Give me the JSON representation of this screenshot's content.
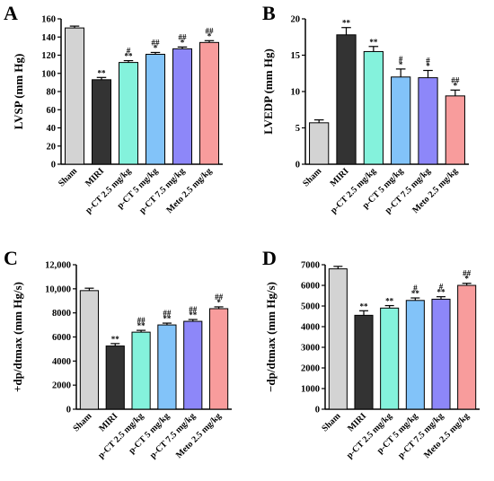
{
  "chart_data": [
    {
      "type": "bar",
      "panel": "A",
      "title": "",
      "xlabel": "",
      "ylabel": "LVSP (mm Hg)",
      "ylim": [
        0,
        160
      ],
      "yticks": [
        "0",
        "20",
        "40",
        "60",
        "80",
        "100",
        "120",
        "140",
        "160"
      ],
      "yticks_values": [
        0,
        20,
        40,
        60,
        80,
        100,
        120,
        140,
        160
      ],
      "categories": [
        "Sham",
        "MIRI",
        "p-CT 2.5 mg/kg",
        "p-CT 5 mg/kg",
        "p-CT 7.5 mg/kg",
        "Meto 2.5 mg/kg"
      ],
      "values": [
        150,
        93,
        112,
        121,
        127,
        134
      ],
      "errors": [
        2,
        2.5,
        2,
        2,
        2,
        2
      ],
      "significance": [
        {
          "upper": "",
          "lower": ""
        },
        {
          "upper": "",
          "lower": "**"
        },
        {
          "upper": "#",
          "lower": "**"
        },
        {
          "upper": "##",
          "lower": "*"
        },
        {
          "upper": "##",
          "lower": "*"
        },
        {
          "upper": "##",
          "lower": "*"
        }
      ]
    },
    {
      "type": "bar",
      "panel": "B",
      "title": "",
      "xlabel": "",
      "ylabel": "LVEDP (mm Hg)",
      "ylim": [
        0,
        20
      ],
      "yticks": [
        "0",
        "5",
        "10",
        "15",
        "20"
      ],
      "yticks_values": [
        0,
        5,
        10,
        15,
        20
      ],
      "categories": [
        "Sham",
        "MIRI",
        "p-CT 2.5 mg/kg",
        "p-CT 5 mg/kg",
        "p-CT 7.5 mg/kg",
        "Meto 2.5 mg/kg"
      ],
      "values": [
        5.7,
        17.8,
        15.5,
        12,
        11.9,
        9.4
      ],
      "errors": [
        0.4,
        1.0,
        0.7,
        1.1,
        1.0,
        0.8
      ],
      "significance": [
        {
          "upper": "",
          "lower": ""
        },
        {
          "upper": "",
          "lower": "**"
        },
        {
          "upper": "",
          "lower": "**"
        },
        {
          "upper": "#",
          "lower": "*"
        },
        {
          "upper": "#",
          "lower": "*"
        },
        {
          "upper": "##",
          "lower": "*"
        }
      ]
    },
    {
      "type": "bar",
      "panel": "C",
      "title": "",
      "xlabel": "",
      "ylabel": "+dp/dtmax (mm Hg/s)",
      "ylim": [
        0,
        12000
      ],
      "yticks": [
        "0",
        "2000",
        "4000",
        "6000",
        "8000",
        "10,000",
        "12,000"
      ],
      "yticks_values": [
        0,
        2000,
        4000,
        6000,
        8000,
        10000,
        12000
      ],
      "categories": [
        "Sham",
        "MIRI",
        "p-CT 2.5 mg/kg",
        "p-CT 5 mg/kg",
        "p-CT 7.5 mg/kg",
        "Meto 2.5 mg/kg"
      ],
      "values": [
        9850,
        5250,
        6400,
        7000,
        7300,
        8350
      ],
      "errors": [
        200,
        200,
        150,
        150,
        150,
        150
      ],
      "significance": [
        {
          "upper": "",
          "lower": ""
        },
        {
          "upper": "",
          "lower": "**"
        },
        {
          "upper": "##",
          "lower": "**"
        },
        {
          "upper": "##",
          "lower": "**"
        },
        {
          "upper": "##",
          "lower": "**"
        },
        {
          "upper": "##",
          "lower": "*"
        }
      ]
    },
    {
      "type": "bar",
      "panel": "D",
      "title": "",
      "xlabel": "",
      "ylabel": "−dp/dtmax (mm Hg/s)",
      "ylim": [
        0,
        7000
      ],
      "yticks": [
        "0",
        "1000",
        "2000",
        "3000",
        "4000",
        "5000",
        "6000",
        "7000"
      ],
      "yticks_values": [
        0,
        1000,
        2000,
        3000,
        4000,
        5000,
        6000,
        7000
      ],
      "categories": [
        "Sham",
        "MIRI",
        "p-CT 2.5 mg/kg",
        "p-CT 5 mg/kg",
        "p-CT 7.5 mg/kg",
        "Meto 2.5 mg/kg"
      ],
      "values": [
        6800,
        4550,
        4900,
        5270,
        5330,
        6000
      ],
      "errors": [
        120,
        220,
        120,
        120,
        120,
        100
      ],
      "significance": [
        {
          "upper": "",
          "lower": ""
        },
        {
          "upper": "",
          "lower": "**"
        },
        {
          "upper": "",
          "lower": "**"
        },
        {
          "upper": "#",
          "lower": "**"
        },
        {
          "upper": "#",
          "lower": "**"
        },
        {
          "upper": "##",
          "lower": "*"
        }
      ]
    }
  ],
  "bar_colors": [
    "#d3d3d3",
    "#333333",
    "#84f2dc",
    "#82c3f9",
    "#8d87f9",
    "#f89c9c"
  ]
}
